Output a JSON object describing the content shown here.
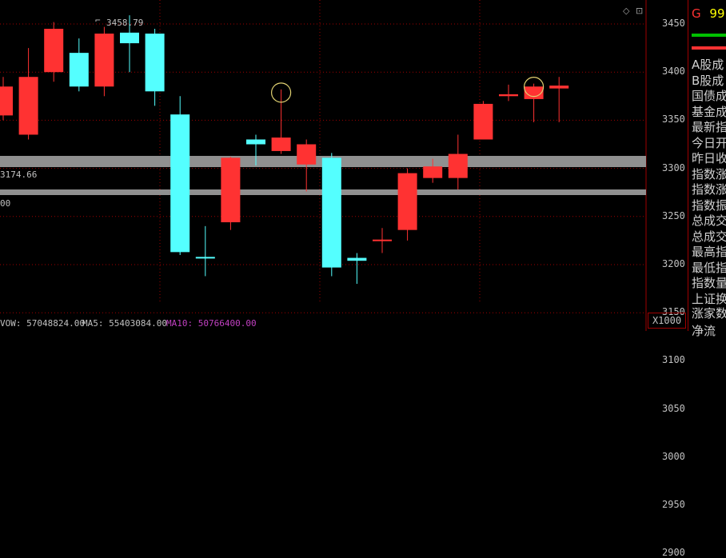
{
  "chart_data": {
    "type": "candlestick",
    "y_ticks": [
      "3450",
      "3400",
      "3350",
      "3300",
      "3250",
      "3200",
      "3150",
      "3100",
      "3050",
      "3000",
      "2950",
      "2900"
    ],
    "ylim": [
      2870,
      3470
    ],
    "candles": [
      {
        "open": 3355,
        "close": 3385,
        "high": 3395,
        "low": 3350
      },
      {
        "open": 3335,
        "close": 3395,
        "high": 3425,
        "low": 3330
      },
      {
        "open": 3400,
        "close": 3445,
        "high": 3452,
        "low": 3390
      },
      {
        "open": 3420,
        "close": 3385,
        "high": 3435,
        "low": 3380
      },
      {
        "open": 3385,
        "close": 3440,
        "high": 3447,
        "low": 3375
      },
      {
        "open": 3441,
        "close": 3430,
        "high": 3459,
        "low": 3400
      },
      {
        "open": 3440,
        "close": 3380,
        "high": 3445,
        "low": 3365
      },
      {
        "open": 3356,
        "close": 3213,
        "high": 3375,
        "low": 3210
      },
      {
        "open": 3208,
        "close": 3208,
        "high": 3240,
        "low": 3188
      },
      {
        "open": 3244,
        "close": 3311,
        "high": 3312,
        "low": 3236
      },
      {
        "open": 3330,
        "close": 3325,
        "high": 3335,
        "low": 3303
      },
      {
        "open": 3318,
        "close": 3332,
        "high": 3382,
        "low": 3315
      },
      {
        "open": 3304,
        "close": 3325,
        "high": 3330,
        "low": 3276
      },
      {
        "open": 3311,
        "close": 3197,
        "high": 3316,
        "low": 3188
      },
      {
        "open": 3207,
        "close": 3204,
        "high": 3212,
        "low": 3180
      },
      {
        "open": 3226,
        "close": 3226,
        "high": 3238,
        "low": 3212
      },
      {
        "open": 3236,
        "close": 3295,
        "high": 3300,
        "low": 3225
      },
      {
        "open": 3290,
        "close": 3302,
        "high": 3310,
        "low": 3285
      },
      {
        "open": 3290,
        "close": 3315,
        "high": 3335,
        "low": 3278
      },
      {
        "open": 3330,
        "close": 3367,
        "high": 3370,
        "low": 3330
      },
      {
        "open": 3375,
        "close": 3377,
        "high": 3387,
        "low": 3370
      },
      {
        "open": 3372,
        "close": 3385,
        "high": 3388,
        "low": 3348
      },
      {
        "open": 3383,
        "close": 3386,
        "high": 3395,
        "low": 3348
      }
    ],
    "annotations": {
      "high_value": "3458.79",
      "low_value": "3174.66",
      "secondary_value": "00"
    },
    "circle_marks": [
      11,
      21
    ]
  },
  "volume_row": {
    "vol_label": "VOW: 57048824.00",
    "ma5_label": "MA5: 55403084.00",
    "ma10_label": "MA10: 50766400.00"
  },
  "scale_box": "X1000",
  "colors": {
    "up": "#ff3232",
    "down": "#54ffff",
    "grid": "#a00000",
    "band": "#909090"
  },
  "side_panel": {
    "header_letter": "G",
    "header_value": "99",
    "items": [
      "A股成",
      "B股成",
      "国债成",
      "基金成",
      "最新指",
      "今日开",
      "昨日收",
      "指数涨",
      "指数涨",
      "指数振",
      "总成交",
      "总成交",
      "最高指",
      "最低指",
      "指数量",
      "上证换"
    ],
    "footer_items": [
      "涨家数",
      "净流"
    ]
  }
}
